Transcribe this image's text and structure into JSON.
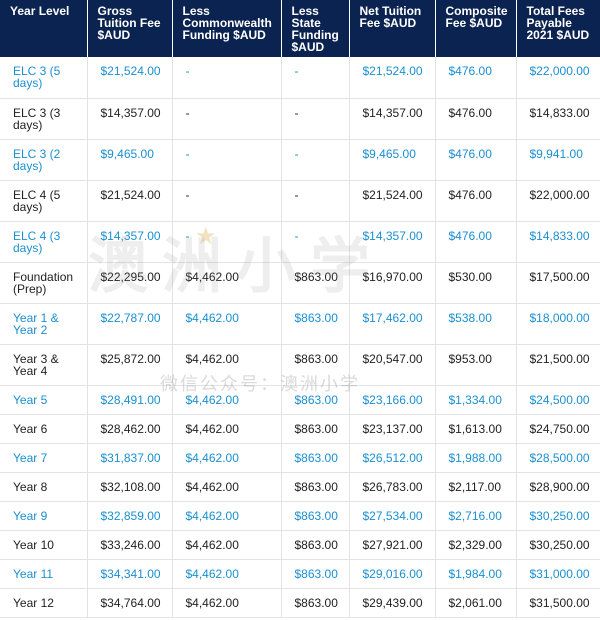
{
  "headers": [
    "Year Level",
    "Gross Tuition Fee $AUD",
    "Less Commonwealth Funding $AUD",
    "Less State Funding $AUD",
    "Net Tuition Fee $AUD",
    "Composite Fee $AUD",
    "Total Fees Payable 2021 $AUD"
  ],
  "rows": [
    [
      "ELC 3 (5 days)",
      "$21,524.00",
      "-",
      "-",
      "$21,524.00",
      "$476.00",
      "$22,000.00"
    ],
    [
      "ELC 3 (3 days)",
      "$14,357.00",
      "-",
      "-",
      "$14,357.00",
      "$476.00",
      "$14,833.00"
    ],
    [
      "ELC 3 (2 days)",
      "$9,465.00",
      "-",
      "-",
      "$9,465.00",
      "$476.00",
      "$9,941.00"
    ],
    [
      "ELC 4 (5 days)",
      "$21,524.00",
      "-",
      "-",
      "$21,524.00",
      "$476.00",
      "$22,000.00"
    ],
    [
      "ELC 4 (3 days)",
      "$14,357.00",
      "-",
      "-",
      "$14,357.00",
      "$476.00",
      "$14,833.00"
    ],
    [
      "Foundation (Prep)",
      "$22,295.00",
      "$4,462.00",
      "$863.00",
      "$16,970.00",
      "$530.00",
      "$17,500.00"
    ],
    [
      "Year 1 & Year 2",
      "$22,787.00",
      "$4,462.00",
      "$863.00",
      "$17,462.00",
      "$538.00",
      "$18,000.00"
    ],
    [
      "Year 3 & Year 4",
      "$25,872.00",
      "$4,462.00",
      "$863.00",
      "$20,547.00",
      "$953.00",
      "$21,500.00"
    ],
    [
      "Year 5",
      "$28,491.00",
      "$4,462.00",
      "$863.00",
      "$23,166.00",
      "$1,334.00",
      "$24,500.00"
    ],
    [
      "Year 6",
      "$28,462.00",
      "$4,462.00",
      "$863.00",
      "$23,137.00",
      "$1,613.00",
      "$24,750.00"
    ],
    [
      "Year 7",
      "$31,837.00",
      "$4,462.00",
      "$863.00",
      "$26,512.00",
      "$1,988.00",
      "$28,500.00"
    ],
    [
      "Year 8",
      "$32,108.00",
      "$4,462.00",
      "$863.00",
      "$26,783.00",
      "$2,117.00",
      "$28,900.00"
    ],
    [
      "Year 9",
      "$32,859.00",
      "$4,462.00",
      "$863.00",
      "$27,534.00",
      "$2,716.00",
      "$30,250.00"
    ],
    [
      "Year 10",
      "$33,246.00",
      "$4,462.00",
      "$863.00",
      "$27,921.00",
      "$2,329.00",
      "$30,250.00"
    ],
    [
      "Year 11",
      "$34,341.00",
      "$4,462.00",
      "$863.00",
      "$29,016.00",
      "$1,984.00",
      "$31,000.00"
    ],
    [
      "Year 12",
      "$34,764.00",
      "$4,462.00",
      "$863.00",
      "$29,439.00",
      "$2,061.00",
      "$31,500.00"
    ]
  ],
  "watermark": {
    "main_text": "澳洲小学",
    "sub_text": "微信公众号：澳洲小学"
  },
  "colors": {
    "header_bg": "#0b2350",
    "header_text": "#ffffff",
    "alt_row_text": "#1b8fd0",
    "row_text": "#222222"
  }
}
